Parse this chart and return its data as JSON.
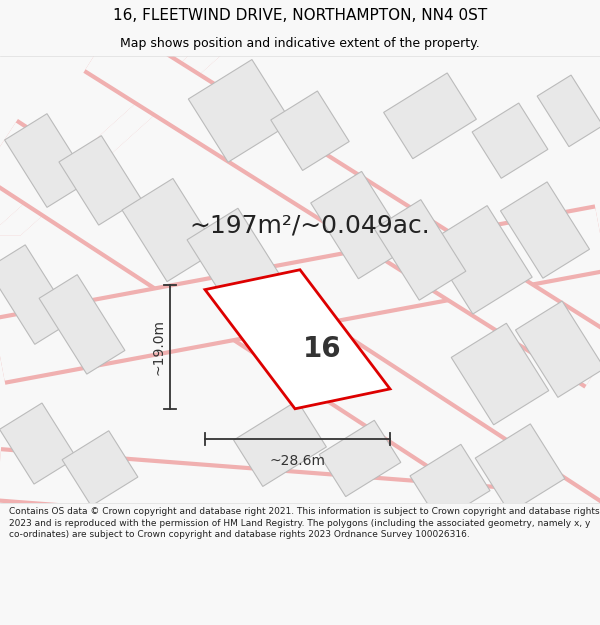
{
  "title": "16, FLEETWIND DRIVE, NORTHAMPTON, NN4 0ST",
  "subtitle": "Map shows position and indicative extent of the property.",
  "area_text": "~197m²/~0.049ac.",
  "label_16": "16",
  "dim_width": "~28.6m",
  "dim_height": "~19.0m",
  "footer": "Contains OS data © Crown copyright and database right 2021. This information is subject to Crown copyright and database rights 2023 and is reproduced with the permission of HM Land Registry. The polygons (including the associated geometry, namely x, y co-ordinates) are subject to Crown copyright and database rights 2023 Ordnance Survey 100026316.",
  "bg_color": "#f8f8f8",
  "map_bg": "#f8f8f8",
  "plot_color": "#dd0000",
  "plot_fill": "#ffffff",
  "building_fill": "#e8e8e8",
  "building_edge": "#bbbbbb",
  "road_outline": "#f0b0b0",
  "dim_line_color": "#333333",
  "title_fontsize": 11,
  "subtitle_fontsize": 9,
  "area_fontsize": 18,
  "label_fontsize": 20,
  "dim_fontsize": 10,
  "footer_fontsize": 6.5
}
